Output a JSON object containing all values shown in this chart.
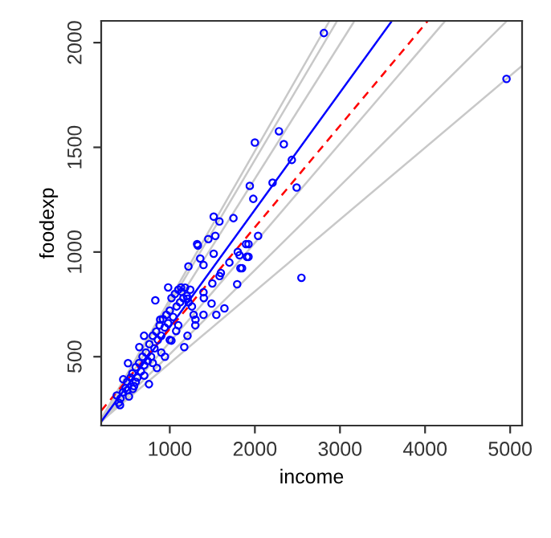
{
  "chart_data": {
    "type": "scatter",
    "xlabel": "income",
    "ylabel": "foodexp",
    "xlim": [
      194,
      5140
    ],
    "ylim": [
      171,
      2104
    ],
    "xticks": [
      1000,
      2000,
      3000,
      4000,
      5000
    ],
    "yticks": [
      500,
      1000,
      1500,
      2000
    ],
    "grid": false,
    "legend": false,
    "series": [
      {
        "color": "#0000ff",
        "marker": "circle",
        "x": [
          4957,
          2811,
          2283,
          2000,
          2340,
          2434,
          1940,
          2208,
          1981,
          2491,
          1516,
          1583,
          1748,
          1535,
          2038,
          1330,
          1453,
          1896,
          1516,
          1799,
          1820,
          1358,
          1906,
          1396,
          1219,
          1849,
          2547,
          1321,
          1925,
          1925,
          981,
          1132,
          830,
          1208,
          1396,
          1491,
          1792,
          1830,
          1585,
          1642,
          1547,
          1396,
          1302,
          1170,
          1075,
          887,
          698,
          642,
          509,
          453,
          377,
          415,
          566,
          849,
          755,
          1019,
          943,
          1208,
          400,
          420,
          450,
          480,
          500,
          520,
          540,
          560,
          580,
          600,
          620,
          640,
          660,
          680,
          700,
          720,
          740,
          760,
          780,
          800,
          820,
          840,
          860,
          880,
          900,
          920,
          940,
          960,
          980,
          1000,
          1020,
          1040,
          1060,
          1080,
          1100,
          1120,
          1140,
          1160,
          1180,
          1200,
          1220,
          1240,
          1260,
          1280,
          1000,
          900,
          800,
          700,
          600,
          500,
          1100,
          1300,
          1400,
          1500,
          1600,
          1700
        ],
        "values": [
          1827,
          2046,
          1577,
          1523,
          1515,
          1440,
          1316,
          1331,
          1254,
          1308,
          1169,
          1146,
          1162,
          1077,
          1077,
          1031,
          1062,
          1038,
          992,
          1000,
          985,
          969,
          977,
          938,
          931,
          923,
          877,
          1038,
          1038,
          977,
          831,
          831,
          769,
          777,
          808,
          754,
          846,
          923,
          885,
          731,
          700,
          700,
          677,
          546,
          623,
          677,
          600,
          546,
          469,
          392,
          315,
          269,
          346,
          446,
          369,
          577,
          500,
          600,
          280,
          300,
          330,
          350,
          380,
          310,
          400,
          420,
          360,
          450,
          400,
          470,
          430,
          500,
          460,
          520,
          480,
          560,
          500,
          600,
          540,
          620,
          580,
          650,
          600,
          680,
          640,
          700,
          660,
          720,
          780,
          690,
          800,
          740,
          820,
          760,
          810,
          780,
          830,
          790,
          760,
          820,
          740,
          700,
          580,
          520,
          470,
          410,
          380,
          340,
          650,
          650,
          780,
          850,
          900,
          950
        ]
      },
      {
        "type": "line",
        "color": "#c8c8c8",
        "line_style": "solid",
        "x": [
          194,
          5140
        ],
        "values": [
          192,
          1890
        ]
      },
      {
        "type": "line",
        "color": "#c8c8c8",
        "line_style": "solid",
        "x": [
          194,
          4950
        ],
        "values": [
          188,
          2099
        ]
      },
      {
        "type": "line",
        "color": "#c8c8c8",
        "line_style": "solid",
        "x": [
          194,
          4230
        ],
        "values": [
          188,
          2101
        ]
      },
      {
        "type": "line",
        "color": "#c8c8c8",
        "line_style": "solid",
        "x": [
          194,
          3160
        ],
        "values": [
          187,
          2097
        ]
      },
      {
        "type": "line",
        "color": "#c8c8c8",
        "line_style": "solid",
        "x": [
          194,
          2960
        ],
        "values": [
          200,
          2099
        ]
      },
      {
        "type": "line",
        "color": "#c8c8c8",
        "line_style": "solid",
        "x": [
          194,
          2870
        ],
        "values": [
          202,
          2099
        ]
      },
      {
        "type": "line",
        "color": "#0000ff",
        "line_style": "solid",
        "x": [
          194,
          3600
        ],
        "values": [
          190,
          2098
        ]
      },
      {
        "type": "line",
        "color": "#ff0000",
        "line_style": "dashed",
        "x": [
          194,
          4030
        ],
        "values": [
          242,
          2103
        ]
      }
    ]
  }
}
